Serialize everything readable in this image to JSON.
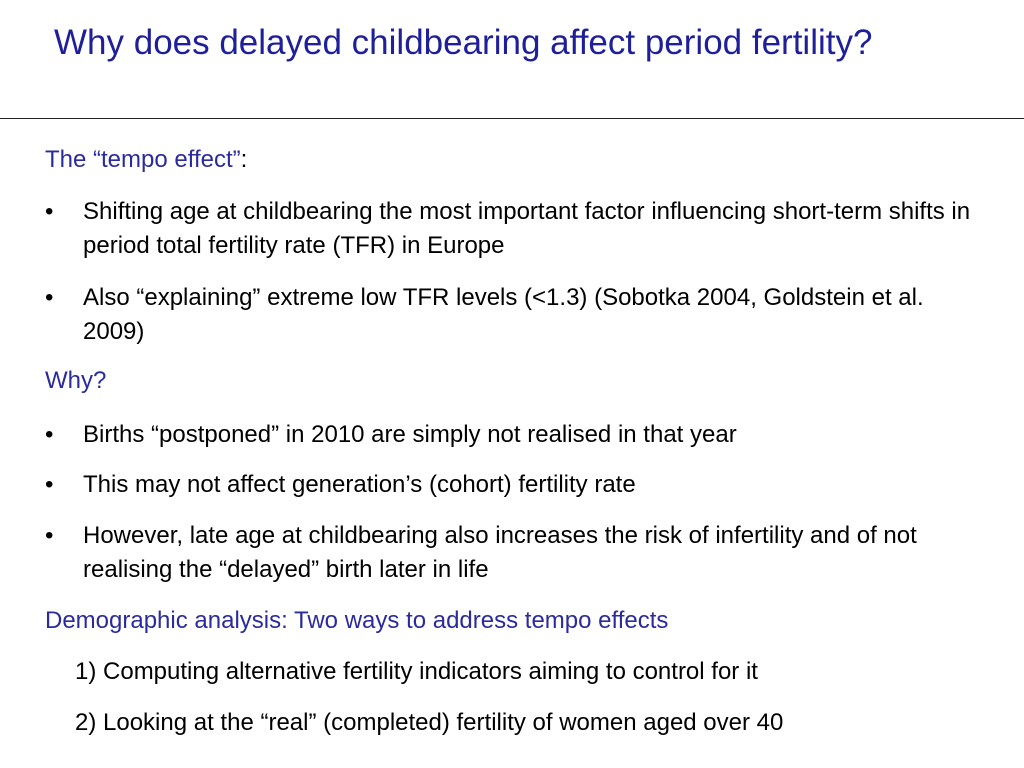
{
  "slide": {
    "title": "Why does delayed childbearing affect period fertility?",
    "section1": {
      "heading": "The “tempo effect”",
      "heading_colon": ":",
      "bullets": [
        "Shifting age at childbearing the most important factor influencing short-term shifts in period total fertility rate (TFR) in Europe",
        "Also “explaining” extreme low TFR levels (<1.3) (Sobotka 2004, Goldstein et al. 2009)"
      ]
    },
    "section2": {
      "heading": "Why?",
      "bullets": [
        "Births “postponed” in 2010 are simply not realised in that year",
        "This may not affect generation’s (cohort) fertility rate",
        "However, late age at childbearing also increases the risk of infertility and of not realising the “delayed” birth later in life"
      ]
    },
    "section3": {
      "heading": "Demographic analysis: Two ways to address tempo effects",
      "items": [
        "1) Computing alternative fertility indicators aiming to control for it",
        "2) Looking at the “real” (completed) fertility of women aged over 40"
      ]
    },
    "bullet_glyph": "•",
    "colors": {
      "title": "#1f1f99",
      "heading": "#2b2b9b",
      "body": "#000000"
    }
  }
}
